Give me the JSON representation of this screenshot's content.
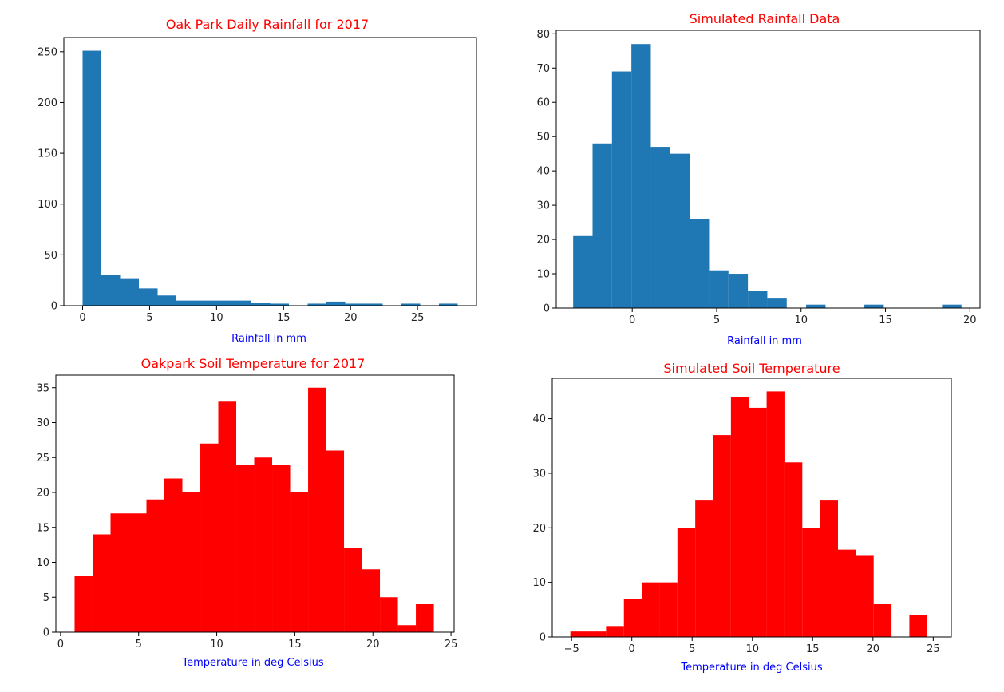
{
  "chart_data": [
    {
      "type": "bar",
      "title": "Oak Park Daily Rainfall for 2017",
      "xlabel": "Rainfall in mm",
      "ylabel": "",
      "color": "#1f77b4",
      "title_color": "#ff0000",
      "xlabel_color": "#0000ff",
      "xlim": [
        -1.4,
        29.4
      ],
      "ylim": [
        0,
        264
      ],
      "xticks": [
        0,
        5,
        10,
        15,
        20,
        25
      ],
      "yticks": [
        0,
        50,
        100,
        150,
        200,
        250
      ],
      "bin_edges": [
        0,
        1.4,
        2.8,
        4.2,
        5.6,
        7.0,
        8.4,
        9.8,
        11.2,
        12.6,
        14.0,
        15.4,
        16.8,
        18.2,
        19.6,
        21.0,
        22.4,
        23.8,
        25.2,
        26.6,
        28.0
      ],
      "values": [
        251,
        30,
        27,
        17,
        10,
        5,
        5,
        5,
        5,
        3,
        2,
        0,
        2,
        4,
        2,
        2,
        0,
        2,
        0,
        2
      ]
    },
    {
      "type": "bar",
      "title": "Simulated Rainfall Data",
      "xlabel": "Rainfall in mm",
      "ylabel": "",
      "color": "#1f77b4",
      "title_color": "#ff0000",
      "xlabel_color": "#0000ff",
      "xlim": [
        -4.5,
        20.6
      ],
      "ylim": [
        0,
        81
      ],
      "xticks": [
        0,
        5,
        10,
        15,
        20
      ],
      "yticks": [
        0,
        10,
        20,
        30,
        40,
        50,
        60,
        70,
        80
      ],
      "bin_edges": [
        -3.5,
        -2.35,
        -1.2,
        -0.05,
        1.1,
        2.25,
        3.4,
        4.55,
        5.7,
        6.85,
        8.0,
        9.15,
        10.3,
        11.45,
        12.6,
        13.75,
        14.9,
        16.05,
        17.2,
        18.35,
        19.5
      ],
      "values": [
        21,
        48,
        69,
        77,
        47,
        45,
        26,
        11,
        10,
        5,
        3,
        0,
        1,
        0,
        0,
        1,
        0,
        0,
        0,
        1
      ]
    },
    {
      "type": "bar",
      "title": "Oakpark Soil Temperature for 2017",
      "xlabel": "Temperature in deg Celsius",
      "ylabel": "",
      "color": "#ff0000",
      "title_color": "#ff0000",
      "xlabel_color": "#0000ff",
      "xlim": [
        -0.3,
        25.2
      ],
      "ylim": [
        0,
        36.8
      ],
      "xticks": [
        0,
        5,
        10,
        15,
        20,
        25
      ],
      "yticks": [
        0,
        5,
        10,
        15,
        20,
        25,
        30,
        35
      ],
      "bin_edges": [
        0.9,
        2.05,
        3.2,
        4.35,
        5.5,
        6.65,
        7.8,
        8.95,
        10.1,
        11.25,
        12.4,
        13.55,
        14.7,
        15.85,
        17.0,
        18.15,
        19.3,
        20.45,
        21.6,
        22.75,
        23.9
      ],
      "values": [
        8,
        14,
        17,
        17,
        19,
        22,
        20,
        27,
        33,
        24,
        25,
        24,
        20,
        35,
        26,
        12,
        9,
        5,
        1,
        4
      ]
    },
    {
      "type": "bar",
      "title": "Simulated Soil Temperature",
      "xlabel": "Temperature in deg Celsius",
      "ylabel": "",
      "color": "#ff0000",
      "title_color": "#ff0000",
      "xlabel_color": "#0000ff",
      "xlim": [
        -6.6,
        26.5
      ],
      "ylim": [
        0,
        47.4
      ],
      "xticks": [
        -5,
        0,
        5,
        10,
        15,
        20,
        25
      ],
      "yticks": [
        0,
        10,
        20,
        30,
        40
      ],
      "bin_edges": [
        -5.1,
        -3.62,
        -2.14,
        -0.66,
        0.82,
        2.3,
        3.78,
        5.26,
        6.74,
        8.22,
        9.7,
        11.18,
        12.66,
        14.14,
        15.62,
        17.1,
        18.58,
        20.06,
        21.54,
        23.02,
        24.5
      ],
      "values": [
        1,
        1,
        2,
        7,
        10,
        10,
        20,
        25,
        37,
        44,
        42,
        45,
        32,
        20,
        25,
        16,
        15,
        6,
        0,
        4
      ]
    }
  ]
}
